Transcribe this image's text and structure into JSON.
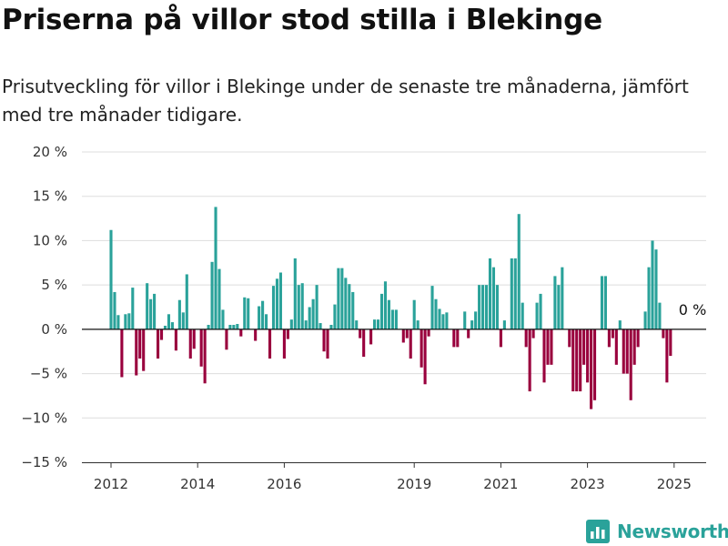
{
  "header": {
    "title": "Priserna på villor stod stilla i Blekinge",
    "subtitle": "Prisutveckling för villor i Blekinge under de senaste tre månaderna, jämfört med tre månader tidigare."
  },
  "brand": {
    "name": "Newsworthy",
    "icon": "newsworthy-logo-icon",
    "color": "#2aa29a"
  },
  "chart_data": {
    "type": "bar",
    "title": "",
    "xlabel": "",
    "ylabel": "",
    "ylim": [
      -15,
      20
    ],
    "y_ticks": [
      20,
      15,
      10,
      5,
      0,
      -5,
      -10,
      -15
    ],
    "y_tick_labels": [
      "20 %",
      "15 %",
      "10 %",
      "5 %",
      "0 %",
      "−5 %",
      "−10 %",
      "−15 %"
    ],
    "x_ticks": [
      2012,
      2014,
      2016,
      2019,
      2021,
      2023,
      2025
    ],
    "x_tick_labels": [
      "2012",
      "2014",
      "2016",
      "2019",
      "2021",
      "2023",
      "2025"
    ],
    "positive_color": "#2aa29a",
    "negative_color": "#99003d",
    "grid": true,
    "last_value_label": "0 %",
    "start": "2012-01",
    "frequency": "monthly",
    "values": [
      11.2,
      4.2,
      1.6,
      -5.4,
      1.7,
      1.8,
      4.7,
      -5.2,
      -3.3,
      -4.7,
      5.2,
      3.4,
      4.0,
      -3.3,
      -1.2,
      0.4,
      1.7,
      0.8,
      -2.4,
      3.3,
      1.9,
      6.2,
      -3.3,
      -2.2,
      0.0,
      -4.2,
      -6.1,
      0.5,
      7.6,
      13.8,
      6.8,
      2.2,
      -2.3,
      0.5,
      0.5,
      0.6,
      -0.8,
      3.6,
      3.5,
      0.0,
      -1.3,
      2.6,
      3.2,
      1.7,
      -3.3,
      4.9,
      5.7,
      6.4,
      -3.3,
      -1.1,
      1.1,
      8.0,
      5.0,
      5.2,
      1.0,
      2.5,
      3.4,
      5.0,
      0.7,
      -2.5,
      -3.3,
      0.5,
      2.8,
      6.9,
      6.9,
      5.8,
      5.1,
      4.2,
      1.0,
      -1.0,
      -3.1,
      0.0,
      -1.7,
      1.1,
      1.1,
      4.0,
      5.4,
      3.3,
      2.2,
      2.2,
      0.0,
      -1.5,
      -1.0,
      -3.3,
      3.3,
      1.0,
      -4.3,
      -6.2,
      -0.8,
      4.9,
      3.4,
      2.3,
      1.7,
      1.9,
      0.0,
      -2.0,
      -2.0,
      0.0,
      2.0,
      -1.0,
      1.0,
      2.0,
      5.0,
      5.0,
      5.0,
      8.0,
      7.0,
      5.0,
      -2.0,
      1.0,
      0.0,
      8.0,
      8.0,
      13.0,
      3.0,
      -2.0,
      -7.0,
      -1.0,
      3.0,
      4.0,
      -6.0,
      -4.0,
      -4.0,
      6.0,
      5.0,
      7.0,
      0.0,
      -2.0,
      -7.0,
      -7.0,
      -7.0,
      -4.0,
      -6.0,
      -9.0,
      -8.0,
      0.0,
      6.0,
      6.0,
      -2.0,
      -1.0,
      -4.0,
      1.0,
      -5.0,
      -5.0,
      -8.0,
      -4.0,
      -2.0,
      0.0,
      2.0,
      7.0,
      10.0,
      9.0,
      3.0,
      -1.0,
      -6.0,
      -3.0,
      0.0
    ]
  }
}
